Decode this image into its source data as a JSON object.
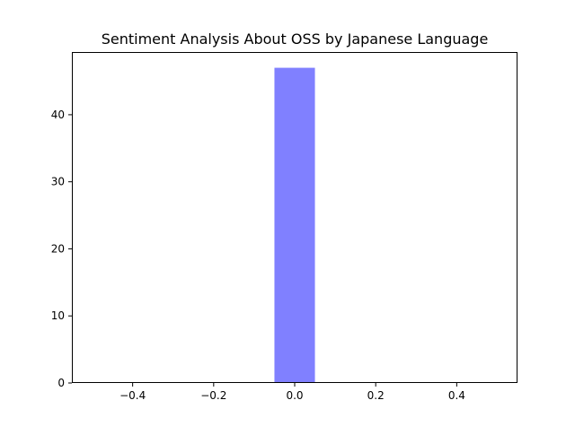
{
  "chart_data": {
    "type": "bar",
    "title": "Sentiment Analysis About OSS by Japanese Language",
    "xlabel": "",
    "ylabel": "",
    "xlim": [
      -0.55,
      0.55
    ],
    "ylim": [
      0,
      49.35
    ],
    "bars": [
      {
        "x_start": -0.05,
        "x_end": 0.05,
        "value": 47
      }
    ],
    "bar_color": "#8080ff",
    "x_ticks": [
      -0.4,
      -0.2,
      0.0,
      0.2,
      0.4
    ],
    "x_tick_labels": [
      "−0.4",
      "−0.2",
      "0.0",
      "0.2",
      "0.4"
    ],
    "y_ticks": [
      0,
      10,
      20,
      30,
      40
    ],
    "y_tick_labels": [
      "0",
      "10",
      "20",
      "30",
      "40"
    ],
    "grid": false,
    "legend": false
  }
}
